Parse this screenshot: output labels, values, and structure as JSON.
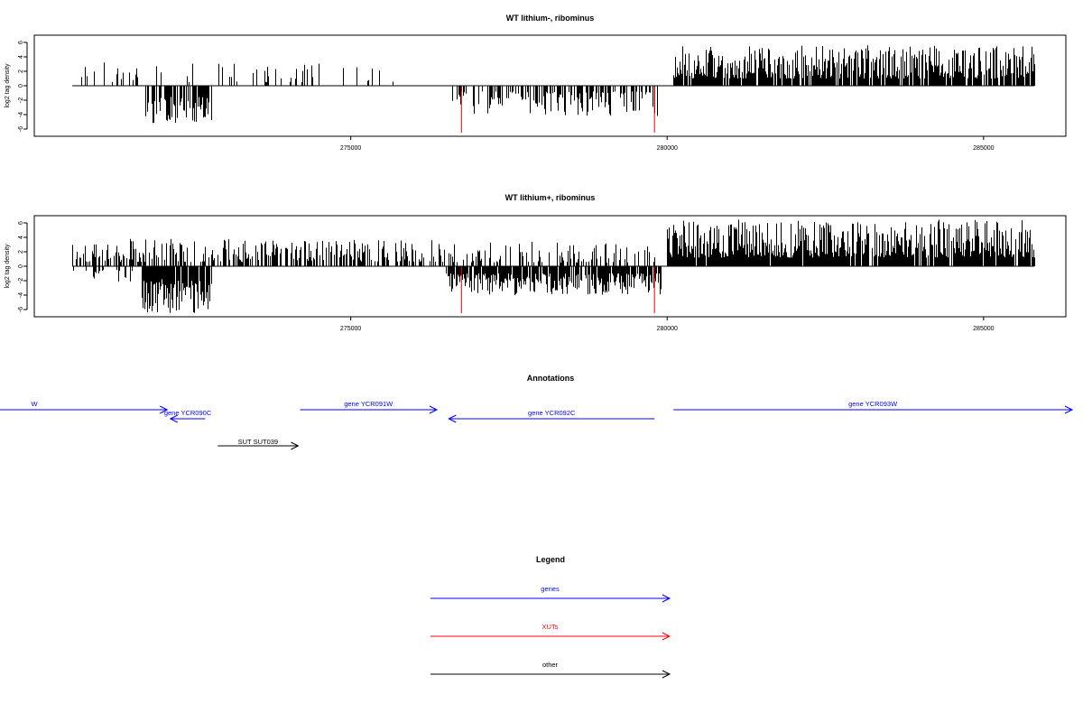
{
  "chart_data": [
    {
      "type": "bar",
      "title": "WT lithium-, ribominus",
      "ylabel": "log2 tag density",
      "xlim": [
        270000,
        286300
      ],
      "ylim": [
        -7,
        7
      ],
      "xticks": [
        275000,
        280000,
        285000
      ],
      "yticks": [
        -6,
        -4,
        -2,
        0,
        2,
        4,
        6
      ],
      "highlight_x": [
        276750,
        279800
      ],
      "highlight_color": "#ff0000",
      "grid": false,
      "data_extent": [
        270600,
        285800
      ],
      "segments": [
        {
          "range": [
            270600,
            275700
          ],
          "sign": "positive",
          "density": 0.12,
          "magnitude": [
            0.5,
            3.3
          ]
        },
        {
          "range": [
            271750,
            272800
          ],
          "sign": "negative",
          "density": 0.65,
          "magnitude": [
            1.5,
            5.2
          ]
        },
        {
          "range": [
            276600,
            279850
          ],
          "sign": "negative",
          "density": 0.45,
          "magnitude": [
            0.8,
            4.2
          ]
        },
        {
          "range": [
            280100,
            285800
          ],
          "sign": "positive",
          "density": 0.8,
          "magnitude": [
            1.0,
            5.6
          ]
        }
      ]
    },
    {
      "type": "bar",
      "title": "WT lithium+, ribominus",
      "ylabel": "log2 tag density",
      "xlim": [
        270000,
        286300
      ],
      "ylim": [
        -7,
        7
      ],
      "xticks": [
        275000,
        280000,
        285000
      ],
      "yticks": [
        -6,
        -4,
        -2,
        0,
        2,
        4,
        6
      ],
      "highlight_x": [
        276750,
        279800
      ],
      "highlight_color": "#ff0000",
      "grid": false,
      "data_extent": [
        270600,
        285800
      ],
      "segments": [
        {
          "range": [
            270600,
            276500
          ],
          "sign": "positive",
          "density": 0.5,
          "magnitude": [
            0.6,
            3.8
          ]
        },
        {
          "range": [
            270600,
            272500
          ],
          "sign": "negative",
          "density": 0.25,
          "magnitude": [
            0.5,
            2.5
          ]
        },
        {
          "range": [
            271700,
            272800
          ],
          "sign": "negative",
          "density": 0.85,
          "magnitude": [
            2.0,
            6.5
          ]
        },
        {
          "range": [
            276500,
            279900
          ],
          "sign": "negative",
          "density": 0.85,
          "magnitude": [
            1.0,
            4.0
          ]
        },
        {
          "range": [
            276500,
            279900
          ],
          "sign": "positive",
          "density": 0.35,
          "magnitude": [
            0.5,
            3.5
          ]
        },
        {
          "range": [
            280000,
            285800
          ],
          "sign": "positive",
          "density": 0.95,
          "magnitude": [
            1.2,
            6.5
          ]
        }
      ]
    }
  ],
  "annotations": {
    "title": "Annotations",
    "xlim": [
      270000,
      286300
    ],
    "features": [
      {
        "label": "W",
        "start": 268000,
        "end": 272100,
        "strand": "+",
        "color": "#0000ff",
        "row": 0,
        "label_row": 0,
        "label_x": 270000
      },
      {
        "label": "gene YCR090C",
        "start": 272150,
        "end": 272700,
        "strand": "-",
        "color": "#0000ff",
        "row": 1,
        "label_row": 1
      },
      {
        "label": "gene YCR091W",
        "start": 274200,
        "end": 276360,
        "strand": "+",
        "color": "#0000ff",
        "row": 0,
        "label_row": 0
      },
      {
        "label": "gene YCR092C",
        "start": 276550,
        "end": 279800,
        "strand": "-",
        "color": "#0000ff",
        "row": 1,
        "label_row": 1
      },
      {
        "label": "gene YCR093W",
        "start": 280100,
        "end": 286400,
        "strand": "+",
        "color": "#0000ff",
        "row": 0,
        "label_row": 0
      },
      {
        "label": "SUT SUT039",
        "start": 272900,
        "end": 274170,
        "strand": "+",
        "color": "#000000",
        "row": 2,
        "label_row": 2
      }
    ]
  },
  "legend": {
    "title": "Legend",
    "items": [
      {
        "label": "genes",
        "color": "#0000ff"
      },
      {
        "label": "XUTs",
        "color": "#ff0000"
      },
      {
        "label": "other",
        "color": "#000000"
      }
    ]
  }
}
